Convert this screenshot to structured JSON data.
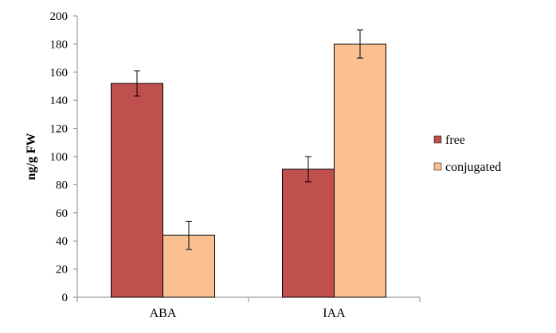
{
  "chart_data": {
    "type": "bar",
    "categories": [
      "ABA",
      "IAA"
    ],
    "series": [
      {
        "name": "free",
        "values": [
          152,
          91
        ],
        "errors": [
          9,
          9
        ],
        "color": "#c0504d"
      },
      {
        "name": "conjugated",
        "values": [
          44,
          180
        ],
        "errors": [
          10,
          10
        ],
        "color": "#fac090"
      }
    ],
    "title": "",
    "xlabel": "",
    "ylabel": "ng/g FW",
    "ylim": [
      0,
      200
    ],
    "yticks": [
      "0",
      "20",
      "40",
      "60",
      "80",
      "100",
      "120",
      "140",
      "160",
      "180",
      "200"
    ],
    "grid": false,
    "legend_position": "right"
  }
}
